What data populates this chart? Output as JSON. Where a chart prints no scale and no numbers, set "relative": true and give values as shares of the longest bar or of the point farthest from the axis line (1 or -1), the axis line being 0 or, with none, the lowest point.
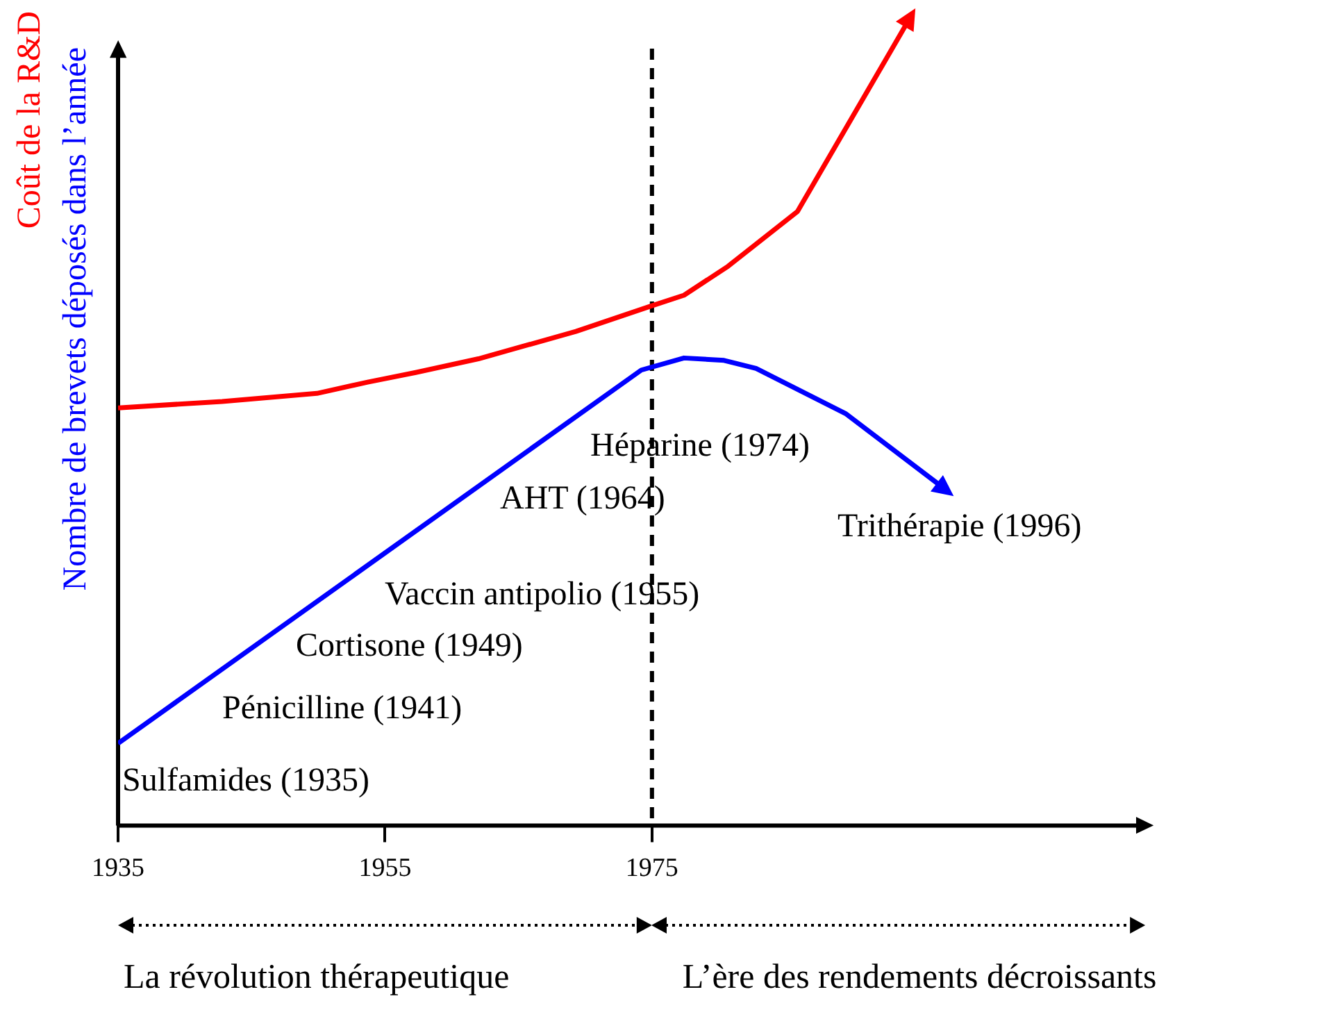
{
  "chart_data": {
    "type": "line",
    "relative": true,
    "marker": "none",
    "line_style": "solid",
    "legend": false,
    "grid": false,
    "xlim": [
      1935,
      2012
    ],
    "xticks": [
      1935,
      1955,
      1975
    ],
    "series": [
      {
        "name": "Coût de la R&D",
        "color": "#ff0000",
        "x": [
          1935,
          1942.8,
          1949.9,
          1953.7,
          1957.3,
          1962,
          1969.3,
          1975,
          1977.4,
          1980.7,
          1985.9,
          1994.2
        ],
        "values": [
          0.519,
          0.527,
          0.537,
          0.551,
          0.563,
          0.58,
          0.614,
          0.646,
          0.659,
          0.695,
          0.763,
          1
        ]
      },
      {
        "name": "Nombre de brevets déposés dans l’année",
        "color": "#0000ff",
        "x": [
          1935,
          1974.2,
          1977.4,
          1980.4,
          1982.8,
          1989.5,
          1996.8
        ],
        "values": [
          0.102,
          0.566,
          0.581,
          0.578,
          0.568,
          0.512,
          0.42
        ]
      }
    ],
    "ref_lines": [
      {
        "axis": "x",
        "value": 1975,
        "color": "#000000",
        "line_style": "dashed"
      }
    ],
    "annotations": [
      "Sulfamides (1935)",
      "Pénicilline (1941)",
      "Cortisone (1949)",
      "Vaccin antipolio (1955)",
      "AHT (1964)",
      "Héparine (1974)",
      "Trithérapie (1996)",
      "La révolution thérapeutique",
      "L’ère des rendements décroissants"
    ]
  }
}
